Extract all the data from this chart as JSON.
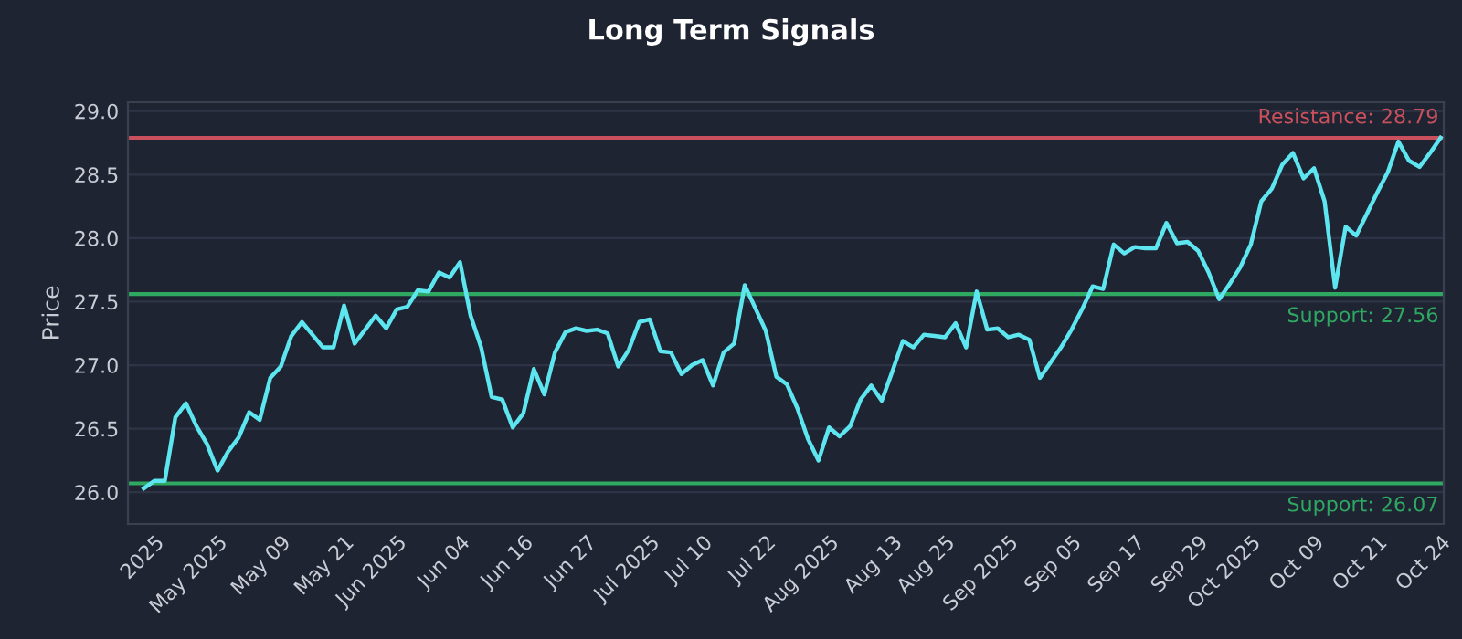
{
  "chart_data": {
    "type": "line",
    "title": "Long Term Signals",
    "ylabel": "Price",
    "categories": [
      null,
      "2025",
      null,
      null,
      null,
      null,
      null,
      "May 2025",
      null,
      null,
      null,
      null,
      null,
      "May 09",
      null,
      null,
      null,
      null,
      null,
      "May 21",
      null,
      null,
      null,
      null,
      "Jun 2025",
      null,
      null,
      null,
      null,
      null,
      "Jun 04",
      null,
      null,
      null,
      null,
      null,
      "Jun 16",
      null,
      null,
      null,
      null,
      null,
      "Jun 27",
      null,
      null,
      null,
      null,
      null,
      "Jul 2025",
      null,
      null,
      null,
      null,
      "Jul 10",
      null,
      null,
      null,
      null,
      null,
      "Jul 22",
      null,
      null,
      null,
      null,
      null,
      "Aug 2025",
      null,
      null,
      null,
      null,
      null,
      "Aug 13",
      null,
      null,
      null,
      null,
      "Aug 25",
      null,
      null,
      null,
      null,
      null,
      "Sep 2025",
      null,
      null,
      null,
      null,
      null,
      "Sep 05",
      null,
      null,
      null,
      null,
      null,
      "Sep 17",
      null,
      null,
      null,
      null,
      null,
      "Sep 29",
      null,
      null,
      null,
      null,
      "Oct 2025",
      null,
      null,
      null,
      null,
      null,
      "Oct 09",
      null,
      null,
      null,
      null,
      null,
      "Oct 21",
      null,
      null,
      null,
      null,
      null,
      "Oct 24"
    ],
    "series": [
      {
        "color": "#5ee6f0",
        "values": [
          26.03,
          26.09,
          26.09,
          26.59,
          26.7,
          26.52,
          26.38,
          26.17,
          26.32,
          26.43,
          26.63,
          26.57,
          26.9,
          26.99,
          27.23,
          27.34,
          27.24,
          27.14,
          27.14,
          27.47,
          27.17,
          27.28,
          27.39,
          27.29,
          27.44,
          27.46,
          27.59,
          27.58,
          27.73,
          27.69,
          27.81,
          27.39,
          27.14,
          26.75,
          26.73,
          26.51,
          26.62,
          26.97,
          26.77,
          27.1,
          27.26,
          27.29,
          27.27,
          27.28,
          27.25,
          26.99,
          27.12,
          27.34,
          27.36,
          27.11,
          27.1,
          26.93,
          27.0,
          27.04,
          26.84,
          27.1,
          27.17,
          27.63,
          27.45,
          27.27,
          26.91,
          26.85,
          26.66,
          26.42,
          26.25,
          26.51,
          26.44,
          26.52,
          26.73,
          26.84,
          26.72,
          26.95,
          27.19,
          27.14,
          27.24,
          27.23,
          27.22,
          27.33,
          27.14,
          27.58,
          27.28,
          27.29,
          27.22,
          27.24,
          27.2,
          26.9,
          27.02,
          27.14,
          27.28,
          27.44,
          27.62,
          27.6,
          27.95,
          27.88,
          27.93,
          27.92,
          27.92,
          28.12,
          27.96,
          27.97,
          27.9,
          27.73,
          27.52,
          27.64,
          27.77,
          27.95,
          28.29,
          28.39,
          28.58,
          28.67,
          28.47,
          28.55,
          28.29,
          27.61,
          28.09,
          28.02,
          28.19,
          28.36,
          28.52,
          28.76,
          28.61,
          28.56,
          28.67,
          28.79
        ]
      }
    ],
    "ylim": [
      25.75,
      29.07
    ],
    "yticks": [
      {
        "value": 26,
        "label": "26.0"
      },
      {
        "value": 26.5,
        "label": "26.5"
      },
      {
        "value": 27,
        "label": "27.0"
      },
      {
        "value": 27.5,
        "label": "27.5"
      },
      {
        "value": 28,
        "label": "28.0"
      },
      {
        "value": 28.5,
        "label": "28.5"
      },
      {
        "value": 29,
        "label": "29.0"
      }
    ],
    "ref_lines": [
      {
        "axis": "y",
        "value": 28.79,
        "label": "Resistance: 28.79",
        "color": "#c9505c"
      },
      {
        "axis": "y",
        "value": 27.56,
        "label": "Support: 27.56",
        "color": "#2fa862"
      },
      {
        "axis": "y",
        "value": 26.07,
        "label": "Support: 26.07",
        "color": "#2fa862"
      }
    ],
    "grid": "y",
    "marker": "none",
    "line_style": "solid"
  }
}
